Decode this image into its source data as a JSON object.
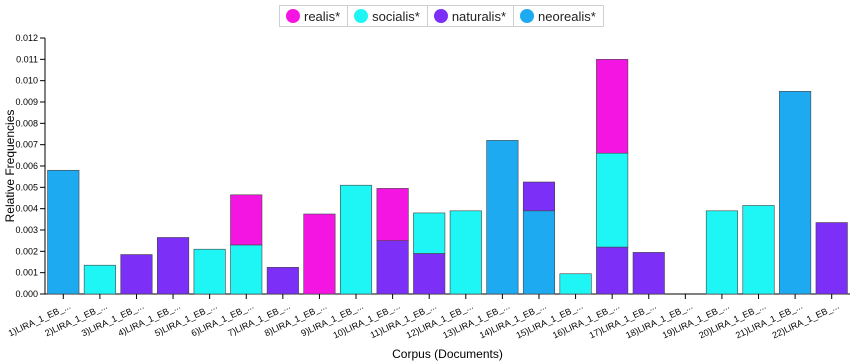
{
  "chart_data": {
    "type": "bar",
    "stacked": true,
    "xlabel": "Corpus (Documents)",
    "ylabel": "Relative Frequencies",
    "ylim": [
      0,
      0.012
    ],
    "yticks": [
      "0.000",
      "0.001",
      "0.002",
      "0.003",
      "0.004",
      "0.005",
      "0.006",
      "0.007",
      "0.008",
      "0.009",
      "0.010",
      "0.011",
      "0.012"
    ],
    "categories": [
      "1)LIRA_1_EB_...",
      "2)LIRA_1_EB_...",
      "3)LIRA_1_EB_...",
      "4)LIRA_1_EB_...",
      "5)LIRA_1_EB_...",
      "6)LIRA_1_EB_...",
      "7)LIRA_1_EB_...",
      "8)LIRA_1_EB_...",
      "9)LIRA_1_EB_...",
      "10)LIRA_1_EB_...",
      "11)LIRA_1_EB_...",
      "12)LIRA_1_EB_...",
      "13)LIRA_1_EB_...",
      "14)LIRA_1_EB_...",
      "15)LIRA_1_EB_...",
      "16)LIRA_1_EB_...",
      "17)LIRA_1_EB_...",
      "18)LIRA_1_EB_...",
      "19)LIRA_1_EB_...",
      "20)LIRA_1_EB_...",
      "21)LIRA_1_EB_...",
      "22)LIRA_1_EB_..."
    ],
    "legend_position": "top-center",
    "series": [
      {
        "name": "neorealis*",
        "color": "#1eaaf1",
        "values": [
          0.0058,
          0,
          0,
          0,
          0,
          0,
          0,
          0,
          0,
          0,
          0,
          0,
          0.0072,
          0.0039,
          0,
          0,
          0,
          0,
          0,
          0,
          0.0095,
          0
        ]
      },
      {
        "name": "naturalis*",
        "color": "#7b2ff7",
        "values": [
          0,
          0,
          0.00185,
          0.00265,
          0,
          0,
          0.00125,
          0,
          0,
          0.0025,
          0.0019,
          0,
          0,
          0.00135,
          0,
          0.0022,
          0.00195,
          0,
          0,
          0,
          0,
          0.00335
        ]
      },
      {
        "name": "socialis*",
        "color": "#1ef5f5",
        "values": [
          0,
          0.00135,
          0,
          0,
          0.0021,
          0.0023,
          0,
          0,
          0.0051,
          0,
          0.0019,
          0.0039,
          0,
          0,
          0.00095,
          0.0044,
          0,
          0,
          0.0039,
          0.00415,
          0,
          0
        ]
      },
      {
        "name": "realis*",
        "color": "#f515e3",
        "values": [
          0,
          0,
          0,
          0,
          0,
          0.00235,
          0,
          0.00375,
          0,
          0.00245,
          0,
          0,
          0,
          0,
          0,
          0.0044,
          0,
          0,
          0,
          0,
          0,
          0
        ]
      }
    ]
  },
  "legend": [
    {
      "label": "realis*",
      "color": "#f515e3"
    },
    {
      "label": "socialis*",
      "color": "#1ef5f5"
    },
    {
      "label": "naturalis*",
      "color": "#7b2ff7"
    },
    {
      "label": "neorealis*",
      "color": "#1eaaf1"
    }
  ]
}
